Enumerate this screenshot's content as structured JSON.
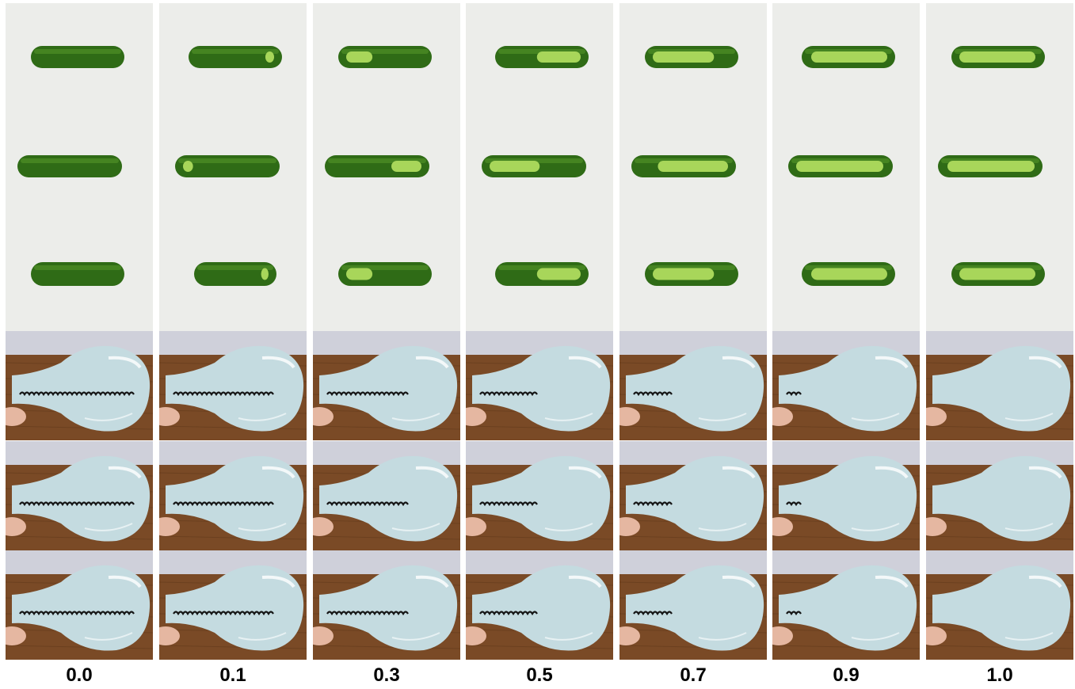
{
  "columns": [
    {
      "label": "0.0",
      "value": 0.0
    },
    {
      "label": "0.1",
      "value": 0.1
    },
    {
      "label": "0.3",
      "value": 0.3
    },
    {
      "label": "0.5",
      "value": 0.5
    },
    {
      "label": "0.7",
      "value": 0.7
    },
    {
      "label": "0.9",
      "value": 0.9
    },
    {
      "label": "1.0",
      "value": 1.0
    }
  ],
  "rows": [
    {
      "subject": "cucumber"
    },
    {
      "subject": "cucumber"
    },
    {
      "subject": "cucumber"
    },
    {
      "subject": "vase"
    },
    {
      "subject": "vase"
    },
    {
      "subject": "vase"
    }
  ],
  "colors": {
    "cucumber_dark": "#2f6b16",
    "cucumber_light": "#a8d65a",
    "cucumber_bg": "#ecedea",
    "vase_body": "#c4dbe0",
    "table_wood": "#7a4a26",
    "wall": "#cfd0da",
    "ink": "#151515"
  }
}
